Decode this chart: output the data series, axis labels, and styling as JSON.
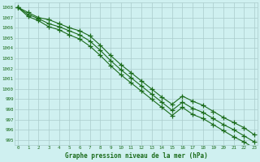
{
  "title": "Graphe pression niveau de la mer (hPa)",
  "x": [
    0,
    1,
    2,
    3,
    4,
    5,
    6,
    7,
    8,
    9,
    10,
    11,
    12,
    13,
    14,
    15,
    16,
    17,
    18,
    19,
    20,
    21,
    22,
    23
  ],
  "line1": [
    1008.0,
    1007.5,
    1007.0,
    1006.8,
    1006.4,
    1006.0,
    1005.7,
    1005.2,
    1004.3,
    1003.3,
    1002.4,
    1001.6,
    1000.8,
    1000.0,
    999.2,
    998.5,
    999.3,
    998.8,
    998.4,
    997.8,
    997.2,
    996.7,
    996.2,
    995.5
  ],
  "line2": [
    1008.0,
    1007.3,
    1006.9,
    1006.4,
    1006.1,
    1005.7,
    1005.3,
    1004.7,
    1003.8,
    1002.8,
    1001.9,
    1001.1,
    1000.3,
    999.5,
    998.7,
    997.9,
    998.7,
    998.1,
    997.7,
    997.1,
    996.5,
    996.0,
    995.4,
    994.8
  ],
  "line3": [
    1008.0,
    1007.1,
    1006.7,
    1006.1,
    1005.8,
    1005.3,
    1004.9,
    1004.2,
    1003.3,
    1002.3,
    1001.4,
    1000.6,
    999.8,
    999.0,
    998.2,
    997.4,
    998.2,
    997.5,
    997.1,
    996.5,
    995.9,
    995.3,
    994.8,
    994.2
  ],
  "line_color": "#1a6b1a",
  "bg_color": "#cff0f0",
  "grid_color": "#aacccc",
  "text_color": "#1a6b1a",
  "ylim_min": 994.5,
  "ylim_max": 1008.5,
  "ytick_min": 995,
  "ytick_max": 1008,
  "ytick_step": 1,
  "xlim_min": -0.3,
  "xlim_max": 23.3,
  "marker": "+",
  "markersize": 4,
  "linewidth": 0.8
}
